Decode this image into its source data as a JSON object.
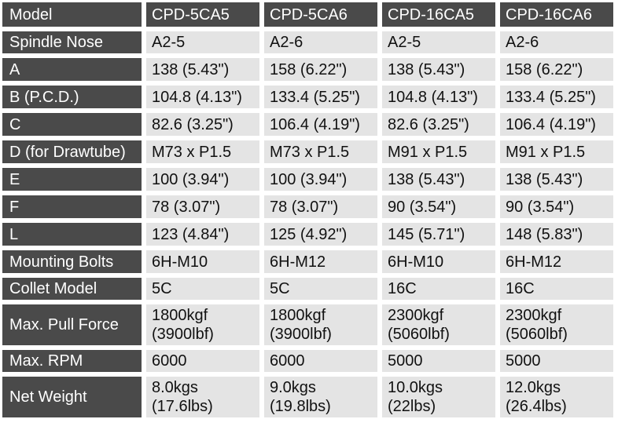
{
  "table": {
    "header_label": "Model",
    "models": [
      "CPD-5CA5",
      "CPD-5CA6",
      "CPD-16CA5",
      "CPD-16CA6"
    ],
    "rows": [
      {
        "label": "Spindle Nose",
        "values": [
          "A2-5",
          "A2-6",
          "A2-5",
          "A2-6"
        ]
      },
      {
        "label": "A",
        "values": [
          "138 (5.43\")",
          "158 (6.22\")",
          "138 (5.43\")",
          "158 (6.22\")"
        ]
      },
      {
        "label": "B (P.C.D.)",
        "values": [
          "104.8 (4.13\")",
          "133.4 (5.25\")",
          "104.8 (4.13\")",
          "133.4 (5.25\")"
        ]
      },
      {
        "label": "C",
        "values": [
          "82.6 (3.25\")",
          "106.4 (4.19\")",
          "82.6 (3.25\")",
          "106.4 (4.19\")"
        ]
      },
      {
        "label": "D (for Drawtube)",
        "values": [
          "M73 x P1.5",
          "M73 x P1.5",
          "M91 x P1.5",
          "M91 x P1.5"
        ]
      },
      {
        "label": "E",
        "values": [
          "100 (3.94\")",
          "100 (3.94\")",
          "138 (5.43\")",
          "138 (5.43\")"
        ]
      },
      {
        "label": "F",
        "values": [
          "78 (3.07\")",
          "78 (3.07\")",
          "90 (3.54\")",
          "90 (3.54\")"
        ]
      },
      {
        "label": "L",
        "values": [
          "123 (4.84\")",
          "125 (4.92\")",
          "145 (5.71\")",
          "148 (5.83\")"
        ]
      },
      {
        "label": "Mounting Bolts",
        "values": [
          "6H-M10",
          "6H-M12",
          "6H-M10",
          "6H-M12"
        ]
      },
      {
        "label": "Collet Model",
        "values": [
          "5C",
          "5C",
          "16C",
          "16C"
        ]
      },
      {
        "label": "Max. Pull Force",
        "values": [
          [
            "1800kgf",
            "(3900lbf)"
          ],
          [
            "1800kgf",
            "(3900lbf)"
          ],
          [
            "2300kgf",
            "(5060lbf)"
          ],
          [
            "2300kgf",
            "(5060lbf)"
          ]
        ]
      },
      {
        "label": "Max. RPM",
        "values": [
          "6000",
          "6000",
          "5000",
          "5000"
        ]
      },
      {
        "label": "Net Weight",
        "values": [
          [
            "8.0kgs",
            "(17.6lbs)"
          ],
          [
            "9.0kgs",
            "(19.8lbs)"
          ],
          [
            "10.0kgs",
            "(22lbs)"
          ],
          [
            "12.0kgs",
            "(26.4lbs)"
          ]
        ]
      }
    ]
  },
  "colors": {
    "label_bg": "#4a4a4a",
    "label_text": "#ffffff",
    "cell_bg": "#e4e4e4",
    "cell_text": "#111111"
  }
}
